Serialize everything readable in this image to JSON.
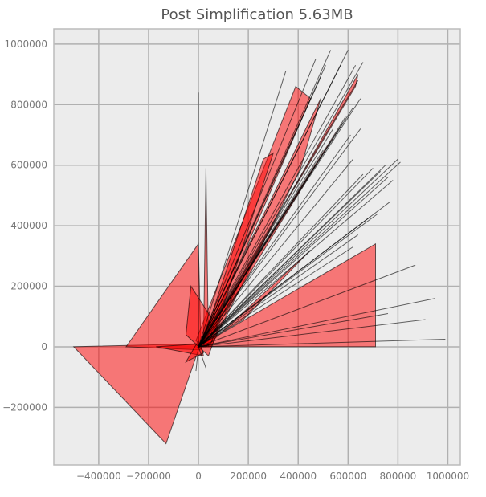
{
  "chart_data": {
    "type": "area",
    "title": "Post Simplification 5.63MB",
    "xlim": [
      -580000,
      1050000
    ],
    "ylim": [
      -390000,
      1050000
    ],
    "x_ticks": [
      -400000,
      -200000,
      0,
      200000,
      400000,
      600000,
      800000,
      1000000
    ],
    "x_tick_labels": [
      "−400000",
      "−200000",
      "0",
      "200000",
      "400000",
      "600000",
      "800000",
      "1000000"
    ],
    "y_ticks": [
      -200000,
      0,
      200000,
      400000,
      600000,
      800000,
      1000000
    ],
    "y_tick_labels": [
      "−200000",
      "0",
      "200000",
      "400000",
      "600000",
      "800000",
      "1000000"
    ],
    "grid": true,
    "fill_color": "#ff0000",
    "edge_color": "#000000",
    "polygons": [
      [
        [
          -500000,
          0
        ],
        [
          -130000,
          -320000
        ],
        [
          0,
          -10000
        ],
        [
          -10000,
          10000
        ]
      ],
      [
        [
          -290000,
          0
        ],
        [
          0,
          340000
        ],
        [
          10000,
          -10000
        ]
      ],
      [
        [
          -170000,
          0
        ],
        [
          20000,
          -30000
        ],
        [
          10000,
          10000
        ]
      ],
      [
        [
          -10000,
          20000
        ],
        [
          390000,
          860000
        ],
        [
          450000,
          820000
        ],
        [
          20000,
          0
        ]
      ],
      [
        [
          0,
          0
        ],
        [
          490000,
          820000
        ],
        [
          410000,
          590000
        ],
        [
          50000,
          0
        ]
      ],
      [
        [
          0,
          0
        ],
        [
          710000,
          340000
        ],
        [
          710000,
          0
        ]
      ],
      [
        [
          -50000,
          -50000
        ],
        [
          20000,
          -20000
        ],
        [
          0,
          20000
        ]
      ],
      [
        [
          20000,
          0
        ],
        [
          30000,
          590000
        ],
        [
          40000,
          0
        ]
      ],
      [
        [
          -50000,
          40000
        ],
        [
          -30000,
          200000
        ],
        [
          80000,
          60000
        ],
        [
          40000,
          -30000
        ]
      ],
      [
        [
          0,
          0
        ],
        [
          560000,
          720000
        ],
        [
          590000,
          760000
        ],
        [
          40000,
          20000
        ]
      ],
      [
        [
          0,
          0
        ],
        [
          180000,
          90000
        ],
        [
          450000,
          320000
        ],
        [
          30000,
          0
        ]
      ],
      [
        [
          10000,
          10000
        ],
        [
          630000,
          860000
        ],
        [
          640000,
          900000
        ],
        [
          50000,
          40000
        ]
      ],
      [
        [
          10000,
          0
        ],
        [
          260000,
          620000
        ],
        [
          300000,
          640000
        ],
        [
          50000,
          10000
        ]
      ]
    ],
    "lines": [
      [
        [
          0,
          0
        ],
        [
          530000,
          980000
        ]
      ],
      [
        [
          0,
          0
        ],
        [
          570000,
          930000
        ]
      ],
      [
        [
          0,
          0
        ],
        [
          600000,
          980000
        ]
      ],
      [
        [
          0,
          0
        ],
        [
          630000,
          930000
        ]
      ],
      [
        [
          0,
          0
        ],
        [
          660000,
          940000
        ]
      ],
      [
        [
          0,
          0
        ],
        [
          510000,
          930000
        ]
      ],
      [
        [
          0,
          0
        ],
        [
          490000,
          890000
        ]
      ],
      [
        [
          0,
          0
        ],
        [
          470000,
          950000
        ]
      ],
      [
        [
          0,
          0
        ],
        [
          350000,
          910000
        ]
      ],
      [
        [
          0,
          0
        ],
        [
          640000,
          880000
        ]
      ],
      [
        [
          0,
          0
        ],
        [
          650000,
          820000
        ]
      ],
      [
        [
          0,
          0
        ],
        [
          620000,
          790000
        ]
      ],
      [
        [
          0,
          0
        ],
        [
          580000,
          740000
        ]
      ],
      [
        [
          0,
          0
        ],
        [
          540000,
          720000
        ]
      ],
      [
        [
          0,
          0
        ],
        [
          500000,
          650000
        ]
      ],
      [
        [
          0,
          0
        ],
        [
          650000,
          720000
        ]
      ],
      [
        [
          0,
          0
        ],
        [
          610000,
          700000
        ]
      ],
      [
        [
          0,
          0
        ],
        [
          470000,
          600000
        ]
      ],
      [
        [
          0,
          0
        ],
        [
          620000,
          620000
        ]
      ],
      [
        [
          0,
          0
        ],
        [
          660000,
          570000
        ]
      ],
      [
        [
          0,
          0
        ],
        [
          700000,
          590000
        ]
      ],
      [
        [
          0,
          0
        ],
        [
          730000,
          580000
        ]
      ],
      [
        [
          0,
          0
        ],
        [
          750000,
          600000
        ]
      ],
      [
        [
          0,
          0
        ],
        [
          760000,
          560000
        ]
      ],
      [
        [
          0,
          0
        ],
        [
          810000,
          610000
        ]
      ],
      [
        [
          0,
          0
        ],
        [
          800000,
          620000
        ]
      ],
      [
        [
          0,
          0
        ],
        [
          780000,
          550000
        ]
      ],
      [
        [
          0,
          0
        ],
        [
          770000,
          480000
        ]
      ],
      [
        [
          0,
          0
        ],
        [
          720000,
          440000
        ]
      ],
      [
        [
          0,
          0
        ],
        [
          690000,
          430000
        ]
      ],
      [
        [
          0,
          0
        ],
        [
          640000,
          370000
        ]
      ],
      [
        [
          0,
          0
        ],
        [
          620000,
          330000
        ]
      ],
      [
        [
          0,
          0
        ],
        [
          870000,
          270000
        ]
      ],
      [
        [
          0,
          0
        ],
        [
          950000,
          160000
        ]
      ],
      [
        [
          0,
          0
        ],
        [
          910000,
          90000
        ]
      ],
      [
        [
          0,
          0
        ],
        [
          990000,
          25000
        ]
      ],
      [
        [
          0,
          0
        ],
        [
          760000,
          110000
        ]
      ],
      [
        [
          0,
          0
        ],
        [
          0,
          840000
        ]
      ],
      [
        [
          0,
          0
        ],
        [
          -10000,
          -80000
        ]
      ],
      [
        [
          0,
          0
        ],
        [
          30000,
          -70000
        ]
      ]
    ]
  }
}
